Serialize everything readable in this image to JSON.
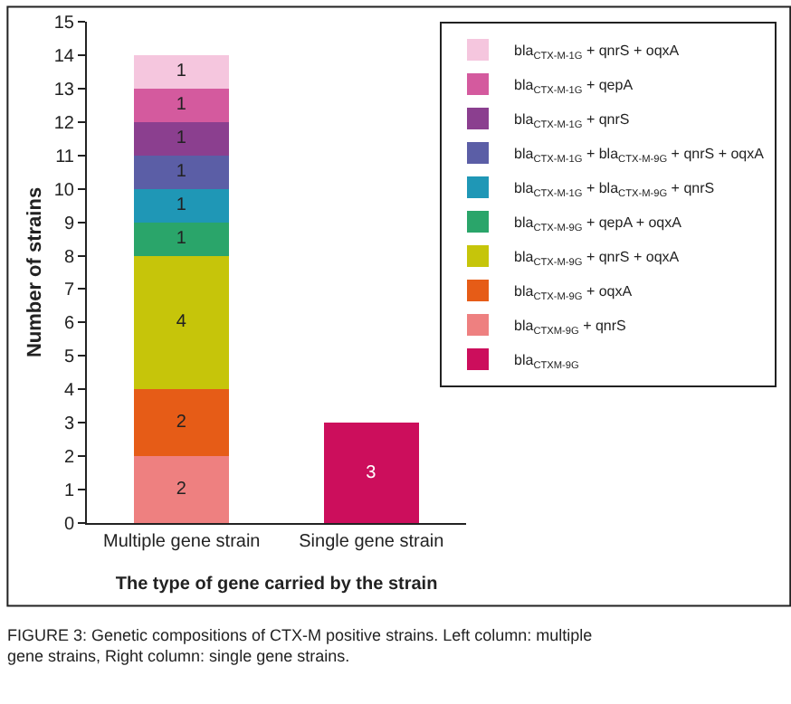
{
  "chart_data": {
    "type": "bar",
    "stacked": true,
    "ylabel": "Number of strains",
    "xlabel": "The type of gene carried by the strain",
    "categories": [
      "Multiple gene strain",
      "Single gene strain"
    ],
    "series": [
      {
        "name": "bla$_{CTXM-9G}$",
        "color": "#cc0e5c",
        "values": [
          null,
          3
        ]
      },
      {
        "name": "bla$_{CTXM-9G}$ + qnrS",
        "color": "#ee8080",
        "values": [
          2,
          null
        ]
      },
      {
        "name": "bla$_{CTX-M-9G}$ + oqxA",
        "color": "#e65c17",
        "values": [
          2,
          null
        ]
      },
      {
        "name": "bla$_{CTX-M-9G}$ + qnrS + oqxA",
        "color": "#c6c50a",
        "values": [
          4,
          null
        ]
      },
      {
        "name": "bla$_{CTX-M-9G}$ + qepA + oqxA",
        "color": "#2aa56a",
        "values": [
          1,
          null
        ]
      },
      {
        "name": "bla$_{CTX-M-1G}$ + bla$_{CTX-M-9G}$ + qnrS",
        "color": "#1f97b6",
        "values": [
          1,
          null
        ]
      },
      {
        "name": "bla$_{CTX-M-1G}$ + bla$_{CTX-M-9G}$ + qnrS + oqxA",
        "color": "#5b5ea6",
        "values": [
          1,
          null
        ]
      },
      {
        "name": "bla$_{CTX-M-1G}$ + qnrS",
        "color": "#8b3f8f",
        "values": [
          1,
          null
        ]
      },
      {
        "name": "bla$_{CTX-M-1G}$ + qepA",
        "color": "#d45a9e",
        "values": [
          1,
          null
        ]
      },
      {
        "name": "bla$_{CTX-M-1G}$ + qnrS + oqxA",
        "color": "#f5c6de",
        "values": [
          1,
          null
        ]
      }
    ],
    "ylim": [
      0,
      15
    ],
    "yticks": [
      0,
      1,
      2,
      3,
      4,
      5,
      6,
      7,
      8,
      9,
      10,
      11,
      12,
      13,
      14,
      15
    ],
    "legend": "top right",
    "data_labels": true,
    "annotations": [
      "FIGURE 3: Genetic compositions of CTX-M positive strains. Left column: multiple\ngene strains, Right column: single gene strains."
    ]
  }
}
